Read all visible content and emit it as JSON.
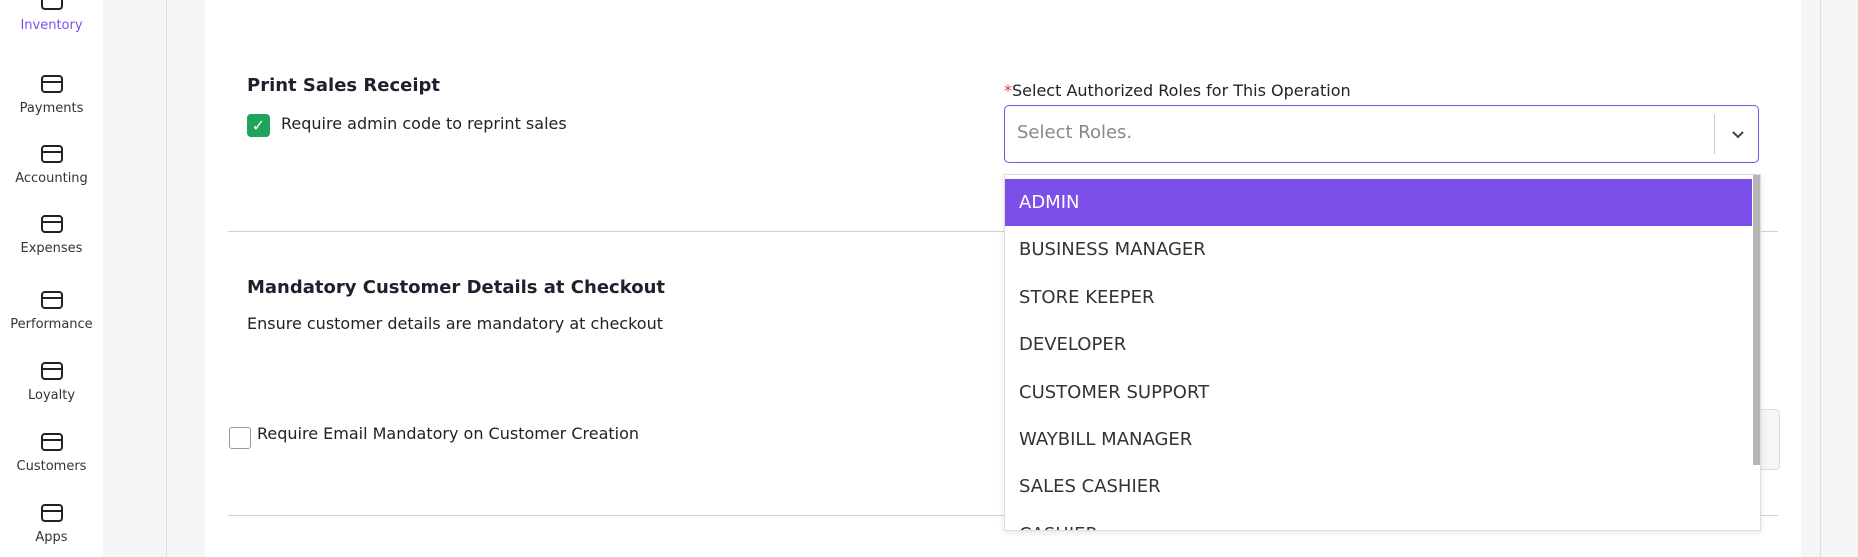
{
  "sidebar": {
    "items": [
      {
        "label": "Inventory"
      },
      {
        "label": "Payments"
      },
      {
        "label": "Accounting"
      },
      {
        "label": "Expenses"
      },
      {
        "label": "Performance"
      },
      {
        "label": "Loyalty"
      },
      {
        "label": "Customers"
      },
      {
        "label": "Apps"
      }
    ]
  },
  "sections": [
    {
      "title": "Print Sales Receipt",
      "checkbox": {
        "label": "Require admin code to reprint sales",
        "checked": true
      }
    },
    {
      "title": "Mandatory Customer Details at Checkout",
      "description": "Ensure customer details are mandatory at checkout",
      "checkbox": {
        "label": "Require Email Mandatory on Customer Creation",
        "checked": false
      }
    }
  ],
  "roles_field": {
    "required_mark": "*",
    "label": "Select Authorized Roles for This Operation",
    "placeholder": "Select Roles.",
    "options": [
      "ADMIN",
      "BUSINESS MANAGER",
      "STORE KEEPER",
      "DEVELOPER",
      "CUSTOMER SUPPORT",
      "WAYBILL MANAGER",
      "SALES CASHIER",
      "CASHIER"
    ]
  }
}
